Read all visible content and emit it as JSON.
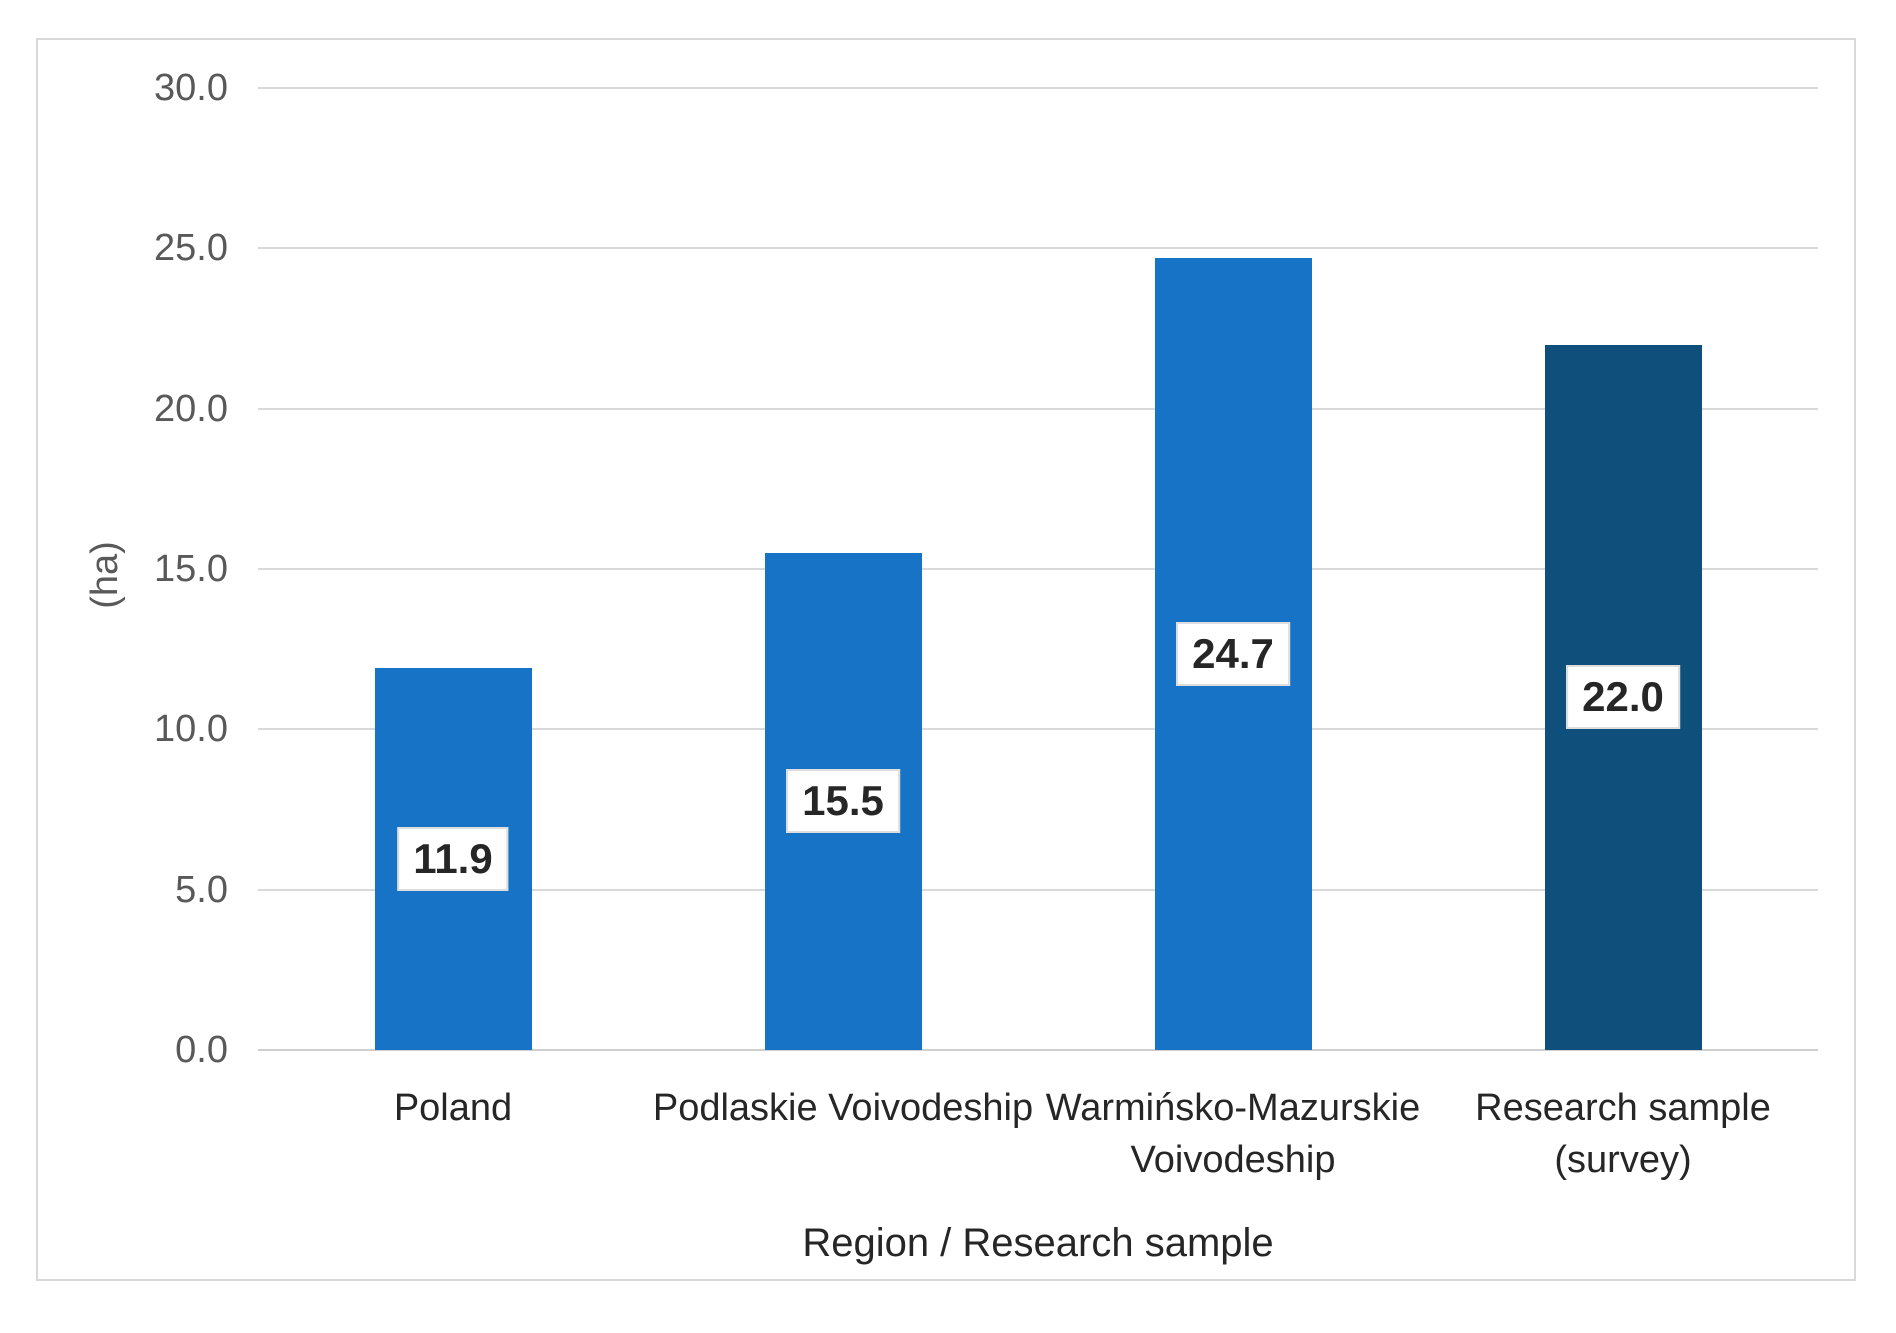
{
  "chart_data": {
    "type": "bar",
    "title": "",
    "categories": [
      "Poland",
      "Podlaskie Voivodeship",
      "Warmińsko-Mazurskie\nVoivodeship",
      "Research sample\n(survey)"
    ],
    "values": [
      11.9,
      15.5,
      24.7,
      22.0
    ],
    "value_labels": [
      "11.9",
      "15.5",
      "24.7",
      "22.0"
    ],
    "bar_colors": [
      "#1673C5",
      "#1673C5",
      "#1673C5",
      "#0E4F7C"
    ],
    "xlabel": "Region / Research sample",
    "ylabel": "(ha)",
    "ylim": [
      0,
      30
    ],
    "ytick_step": 5,
    "yticks": [
      "0.0",
      "5.0",
      "10.0",
      "15.0",
      "20.0",
      "25.0",
      "30.0"
    ],
    "grid": true,
    "legend": "none",
    "colors": {
      "gridline": "#d9d9d9",
      "tick_label": "#595959",
      "category_label": "#262626",
      "frame_border": "#d9d9d9",
      "value_label_text": "#262626",
      "value_label_bg": "#ffffff"
    }
  }
}
